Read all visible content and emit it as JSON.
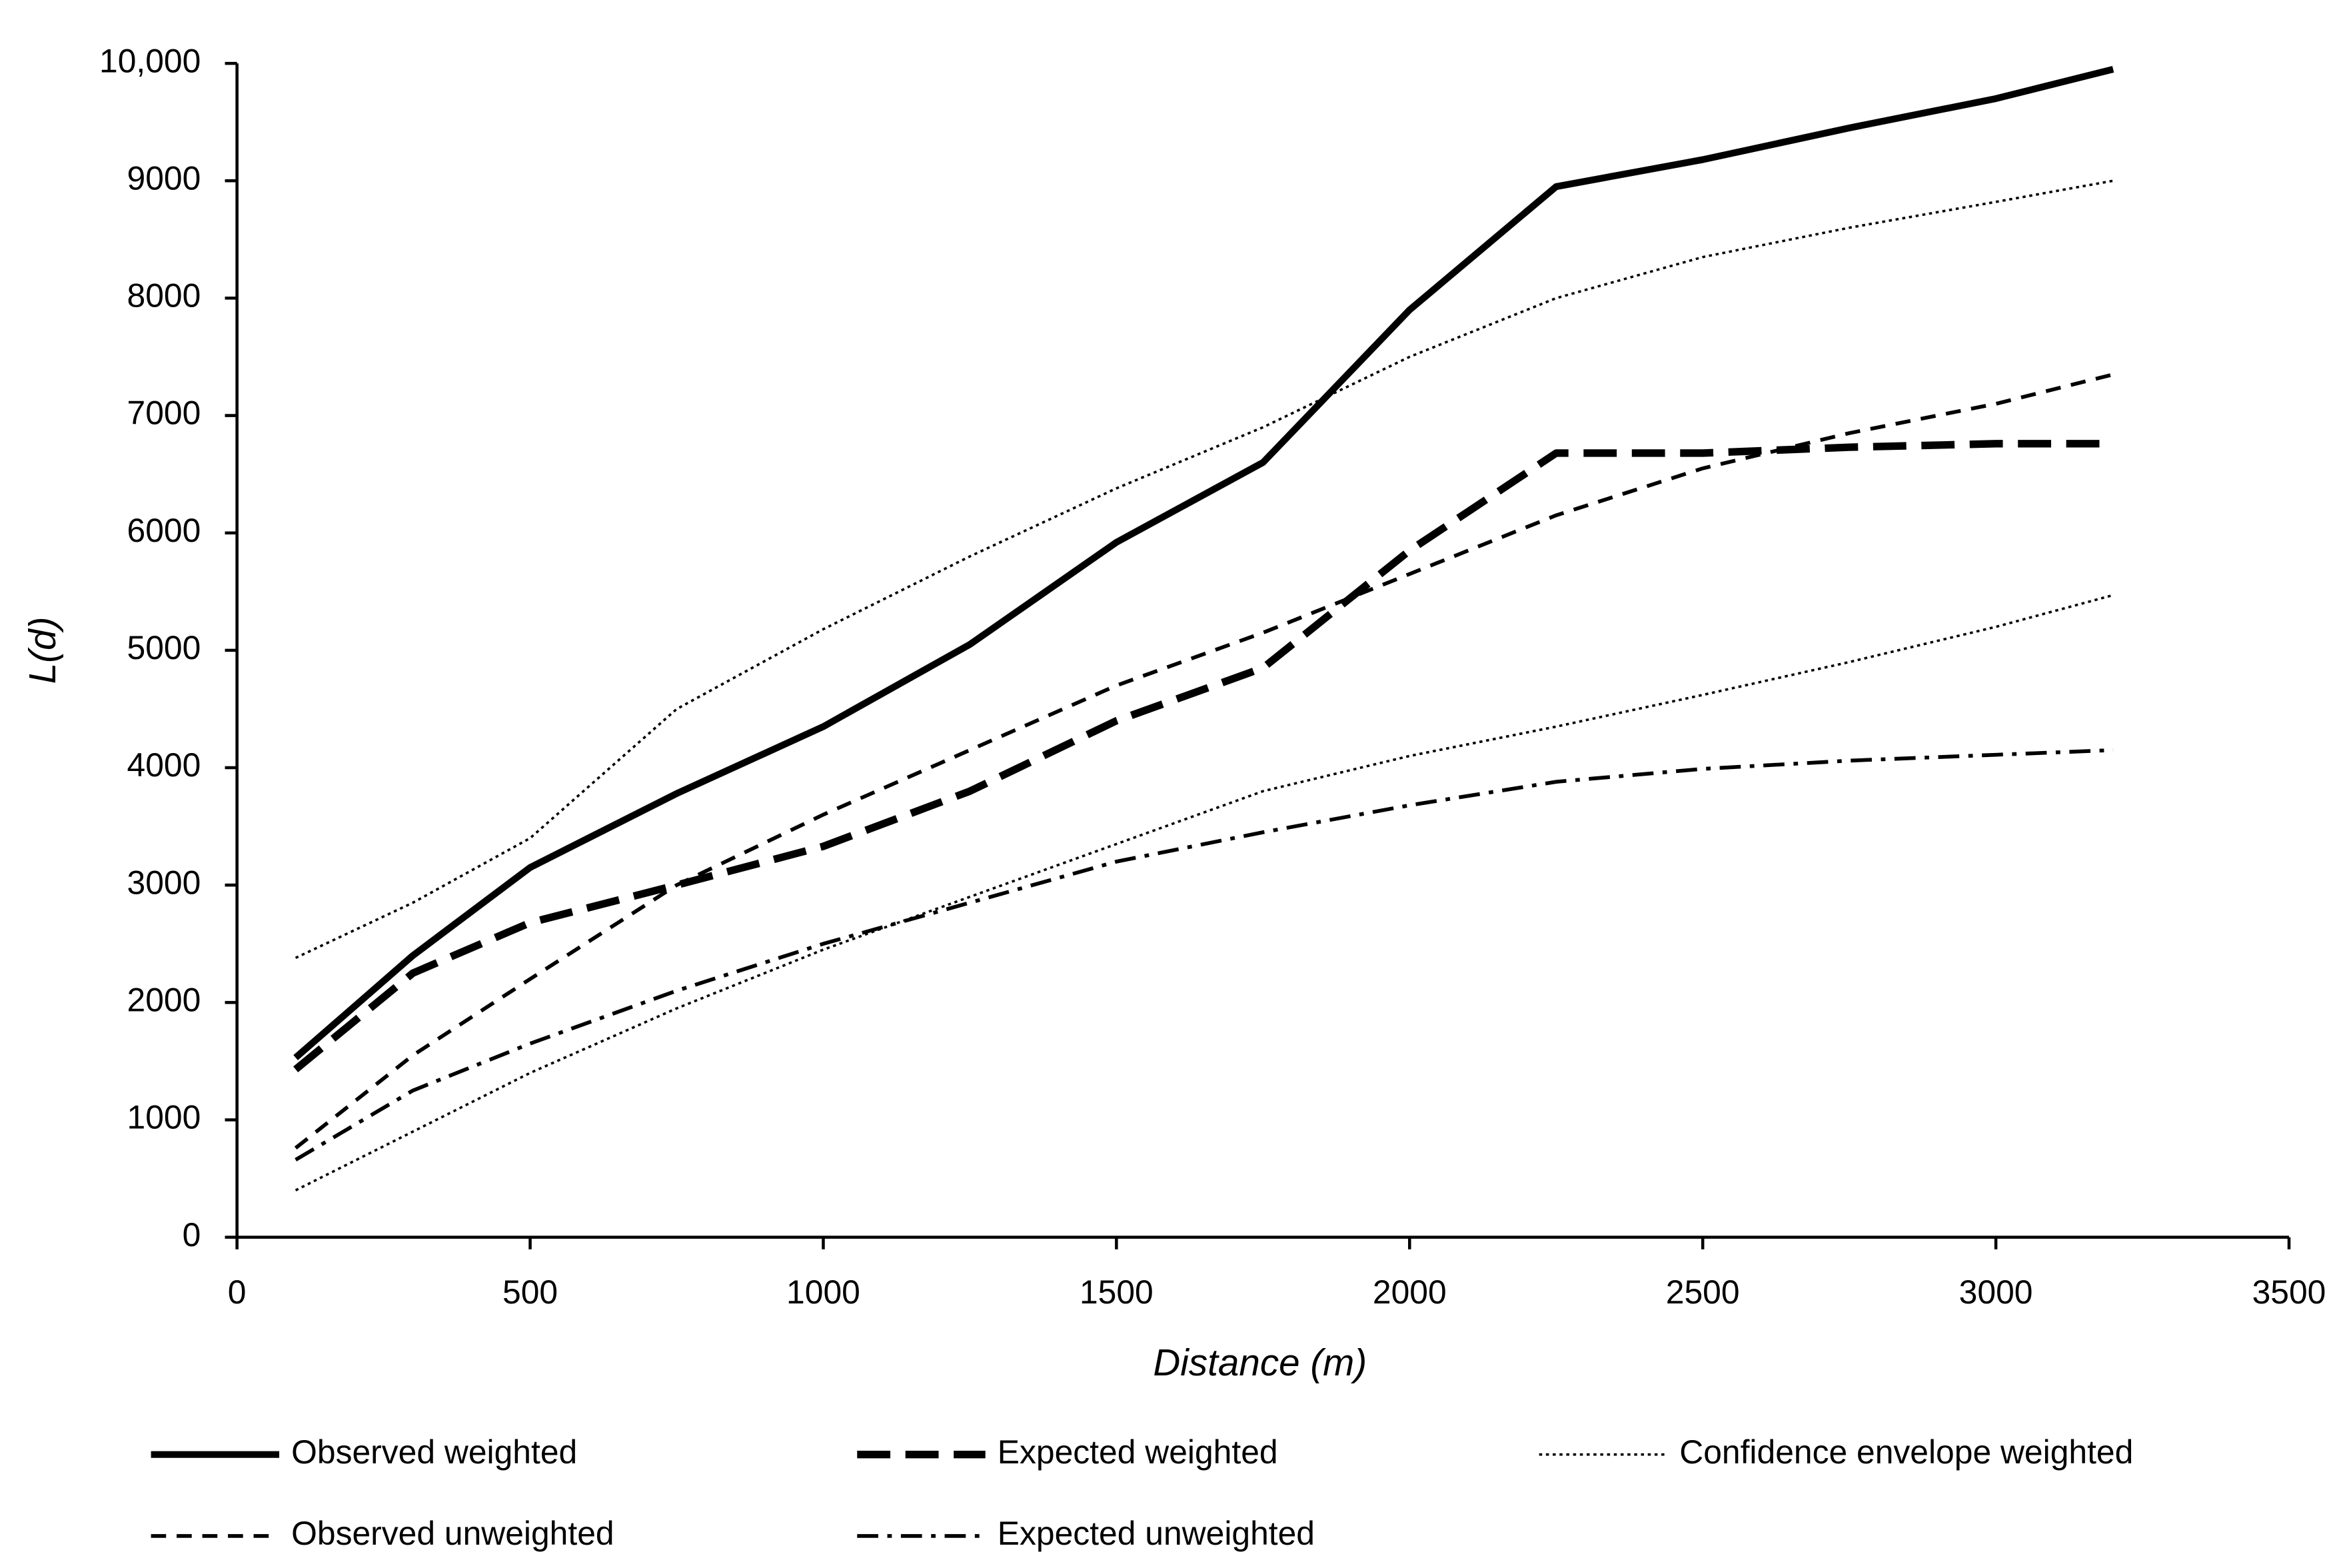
{
  "chart_data": {
    "type": "line",
    "xlabel": "Distance (m)",
    "ylabel": "L(d)",
    "x": [
      100,
      300,
      500,
      750,
      1000,
      1250,
      1500,
      1750,
      2000,
      2250,
      2500,
      2750,
      3000,
      3200
    ],
    "xlim": [
      0,
      3500
    ],
    "xticks": [
      0,
      500,
      1000,
      1500,
      2000,
      2500,
      3000,
      3500
    ],
    "ylim": [
      0,
      10000
    ],
    "yticks": [
      0,
      1000,
      2000,
      3000,
      4000,
      5000,
      6000,
      7000,
      8000,
      9000,
      {
        "value": 10000,
        "label": "10,000"
      }
    ],
    "series": [
      {
        "name": "Observed weighted",
        "color": "#000000",
        "style": "solid",
        "values": [
          1530,
          2400,
          3150,
          3780,
          4350,
          5050,
          5920,
          6600,
          7900,
          8950,
          9180,
          9450,
          9700,
          9950
        ]
      },
      {
        "name": "Expected weighted",
        "color": "#000000",
        "style": "longdash",
        "values": [
          1430,
          2250,
          2680,
          3000,
          3330,
          3800,
          4400,
          4850,
          5850,
          6680,
          6680,
          6730,
          6760,
          6760
        ]
      },
      {
        "name": "Confidence envelope weighted",
        "color": "#000000",
        "style": "dotted",
        "values": [
          2380,
          2850,
          3400,
          4500,
          5180,
          5800,
          6380,
          6900,
          7500,
          8000,
          8350,
          8600,
          8820,
          9000
        ]
      },
      {
        "name": "Observed unweighted",
        "color": "#000000",
        "style": "dash",
        "values": [
          760,
          1550,
          2200,
          3000,
          3600,
          4150,
          4700,
          5150,
          5650,
          6150,
          6550,
          6850,
          7100,
          7350
        ]
      },
      {
        "name": "Expected unweighted",
        "color": "#000000",
        "style": "dashdot",
        "values": [
          660,
          1250,
          1650,
          2100,
          2500,
          2850,
          3200,
          3450,
          3680,
          3880,
          3990,
          4060,
          4110,
          4150
        ]
      },
      {
        "color": "#000000",
        "style": "dotted",
        "values": [
          400,
          900,
          1400,
          1950,
          2450,
          2900,
          3350,
          3800,
          4100,
          4350,
          4620,
          4900,
          5200,
          5470
        ]
      }
    ]
  }
}
